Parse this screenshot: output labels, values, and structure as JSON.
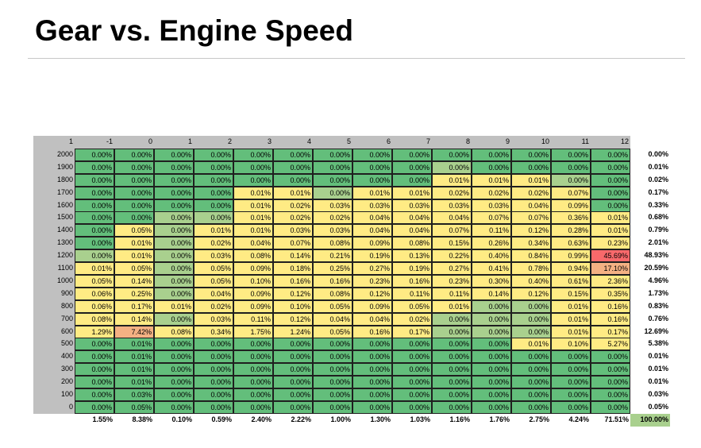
{
  "title": "Gear vs. Engine Speed",
  "corner_label": "1",
  "columns": [
    "-1",
    "0",
    "1",
    "2",
    "3",
    "4",
    "5",
    "6",
    "7",
    "8",
    "9",
    "10",
    "11",
    "12"
  ],
  "colors": {
    "green": "#63be7b",
    "light_green": "#a9d08e",
    "yellow": "#ffeb84",
    "orange": "#f4b183",
    "red": "#f8696b",
    "header_gray": "#c0c0c0"
  },
  "rows": [
    {
      "label": "2000",
      "cells": [
        "0.00%",
        "0.00%",
        "0.00%",
        "0.00%",
        "0.00%",
        "0.00%",
        "0.00%",
        "0.00%",
        "0.00%",
        "0.00%",
        "0.00%",
        "0.00%",
        "0.00%",
        "0.00%"
      ],
      "total": "0.00%"
    },
    {
      "label": "1900",
      "cells": [
        "0.00%",
        "0.00%",
        "0.00%",
        "0.00%",
        "0.00%",
        "0.00%",
        "0.00%",
        "0.00%",
        "0.00%",
        "0.00%",
        "0.00%",
        "0.00%",
        "0.00%",
        "0.00%"
      ],
      "total": "0.01%"
    },
    {
      "label": "1800",
      "cells": [
        "0.00%",
        "0.00%",
        "0.00%",
        "0.00%",
        "0.00%",
        "0.00%",
        "0.00%",
        "0.00%",
        "0.00%",
        "0.01%",
        "0.01%",
        "0.01%",
        "0.00%",
        "0.00%"
      ],
      "total": "0.02%"
    },
    {
      "label": "1700",
      "cells": [
        "0.00%",
        "0.00%",
        "0.00%",
        "0.00%",
        "0.01%",
        "0.01%",
        "0.00%",
        "0.01%",
        "0.01%",
        "0.02%",
        "0.02%",
        "0.02%",
        "0.07%",
        "0.00%"
      ],
      "total": "0.17%"
    },
    {
      "label": "1600",
      "cells": [
        "0.00%",
        "0.00%",
        "0.00%",
        "0.00%",
        "0.01%",
        "0.02%",
        "0.03%",
        "0.03%",
        "0.03%",
        "0.03%",
        "0.03%",
        "0.04%",
        "0.09%",
        "0.00%"
      ],
      "total": "0.33%"
    },
    {
      "label": "1500",
      "cells": [
        "0.00%",
        "0.00%",
        "0.00%",
        "0.00%",
        "0.01%",
        "0.02%",
        "0.02%",
        "0.04%",
        "0.04%",
        "0.04%",
        "0.07%",
        "0.07%",
        "0.36%",
        "0.01%"
      ],
      "total": "0.68%"
    },
    {
      "label": "1400",
      "cells": [
        "0.00%",
        "0.05%",
        "0.00%",
        "0.01%",
        "0.01%",
        "0.03%",
        "0.03%",
        "0.04%",
        "0.04%",
        "0.07%",
        "0.11%",
        "0.12%",
        "0.28%",
        "0.01%"
      ],
      "total": "0.79%"
    },
    {
      "label": "1300",
      "cells": [
        "0.00%",
        "0.01%",
        "0.00%",
        "0.02%",
        "0.04%",
        "0.07%",
        "0.08%",
        "0.09%",
        "0.08%",
        "0.15%",
        "0.26%",
        "0.34%",
        "0.63%",
        "0.23%"
      ],
      "total": "2.01%"
    },
    {
      "label": "1200",
      "cells": [
        "0.00%",
        "0.01%",
        "0.00%",
        "0.03%",
        "0.08%",
        "0.14%",
        "0.21%",
        "0.19%",
        "0.13%",
        "0.22%",
        "0.40%",
        "0.84%",
        "0.99%",
        "45.69%"
      ],
      "total": "48.93%"
    },
    {
      "label": "1100",
      "cells": [
        "0.01%",
        "0.05%",
        "0.00%",
        "0.05%",
        "0.09%",
        "0.18%",
        "0.25%",
        "0.27%",
        "0.19%",
        "0.27%",
        "0.41%",
        "0.78%",
        "0.94%",
        "17.10%"
      ],
      "total": "20.59%"
    },
    {
      "label": "1000",
      "cells": [
        "0.05%",
        "0.14%",
        "0.00%",
        "0.05%",
        "0.10%",
        "0.16%",
        "0.16%",
        "0.23%",
        "0.16%",
        "0.23%",
        "0.30%",
        "0.40%",
        "0.61%",
        "2.36%"
      ],
      "total": "4.96%"
    },
    {
      "label": "900",
      "cells": [
        "0.06%",
        "0.25%",
        "0.00%",
        "0.04%",
        "0.09%",
        "0.12%",
        "0.08%",
        "0.12%",
        "0.11%",
        "0.11%",
        "0.14%",
        "0.12%",
        "0.15%",
        "0.35%"
      ],
      "total": "1.73%"
    },
    {
      "label": "800",
      "cells": [
        "0.06%",
        "0.17%",
        "0.01%",
        "0.02%",
        "0.09%",
        "0.10%",
        "0.05%",
        "0.09%",
        "0.05%",
        "0.01%",
        "0.00%",
        "0.00%",
        "0.01%",
        "0.16%"
      ],
      "total": "0.83%"
    },
    {
      "label": "700",
      "cells": [
        "0.08%",
        "0.14%",
        "0.00%",
        "0.03%",
        "0.11%",
        "0.12%",
        "0.04%",
        "0.04%",
        "0.02%",
        "0.00%",
        "0.00%",
        "0.00%",
        "0.01%",
        "0.16%"
      ],
      "total": "0.76%"
    },
    {
      "label": "600",
      "cells": [
        "1.29%",
        "7.42%",
        "0.08%",
        "0.34%",
        "1.75%",
        "1.24%",
        "0.05%",
        "0.16%",
        "0.17%",
        "0.00%",
        "0.00%",
        "0.00%",
        "0.01%",
        "0.17%"
      ],
      "total": "12.69%"
    },
    {
      "label": "500",
      "cells": [
        "0.00%",
        "0.01%",
        "0.00%",
        "0.00%",
        "0.00%",
        "0.00%",
        "0.00%",
        "0.00%",
        "0.00%",
        "0.00%",
        "0.00%",
        "0.01%",
        "0.10%",
        "5.27%"
      ],
      "total": "5.38%"
    },
    {
      "label": "400",
      "cells": [
        "0.00%",
        "0.01%",
        "0.00%",
        "0.00%",
        "0.00%",
        "0.00%",
        "0.00%",
        "0.00%",
        "0.00%",
        "0.00%",
        "0.00%",
        "0.00%",
        "0.00%",
        "0.00%"
      ],
      "total": "0.01%"
    },
    {
      "label": "300",
      "cells": [
        "0.00%",
        "0.01%",
        "0.00%",
        "0.00%",
        "0.00%",
        "0.00%",
        "0.00%",
        "0.00%",
        "0.00%",
        "0.00%",
        "0.00%",
        "0.00%",
        "0.00%",
        "0.00%"
      ],
      "total": "0.01%"
    },
    {
      "label": "200",
      "cells": [
        "0.00%",
        "0.01%",
        "0.00%",
        "0.00%",
        "0.00%",
        "0.00%",
        "0.00%",
        "0.00%",
        "0.00%",
        "0.00%",
        "0.00%",
        "0.00%",
        "0.00%",
        "0.00%"
      ],
      "total": "0.01%"
    },
    {
      "label": "100",
      "cells": [
        "0.00%",
        "0.03%",
        "0.00%",
        "0.00%",
        "0.00%",
        "0.00%",
        "0.00%",
        "0.00%",
        "0.00%",
        "0.00%",
        "0.00%",
        "0.00%",
        "0.00%",
        "0.00%"
      ],
      "total": "0.03%"
    },
    {
      "label": "0",
      "cells": [
        "0.00%",
        "0.05%",
        "0.00%",
        "0.00%",
        "0.00%",
        "0.00%",
        "0.00%",
        "0.00%",
        "0.00%",
        "0.00%",
        "0.00%",
        "0.00%",
        "0.00%",
        "0.00%"
      ],
      "total": "0.05%"
    }
  ],
  "color_grid": [
    [
      "g",
      "g",
      "g",
      "g",
      "g",
      "g",
      "g",
      "g",
      "g",
      "g",
      "g",
      "g",
      "g",
      "g"
    ],
    [
      "g",
      "g",
      "g",
      "g",
      "g",
      "g",
      "g",
      "g",
      "g",
      "lg",
      "g",
      "g",
      "g",
      "g"
    ],
    [
      "g",
      "g",
      "g",
      "g",
      "g",
      "g",
      "g",
      "g",
      "g",
      "y",
      "y",
      "y",
      "lg",
      "g"
    ],
    [
      "g",
      "g",
      "g",
      "g",
      "y",
      "y",
      "lg",
      "y",
      "y",
      "y",
      "y",
      "y",
      "y",
      "g"
    ],
    [
      "g",
      "g",
      "g",
      "g",
      "y",
      "y",
      "y",
      "y",
      "y",
      "y",
      "y",
      "y",
      "y",
      "g"
    ],
    [
      "g",
      "g",
      "lg",
      "lg",
      "y",
      "y",
      "y",
      "y",
      "y",
      "y",
      "y",
      "y",
      "y",
      "y"
    ],
    [
      "g",
      "y",
      "lg",
      "y",
      "y",
      "y",
      "y",
      "y",
      "y",
      "y",
      "y",
      "y",
      "y",
      "y"
    ],
    [
      "g",
      "y",
      "lg",
      "y",
      "y",
      "y",
      "y",
      "y",
      "y",
      "y",
      "y",
      "y",
      "y",
      "y"
    ],
    [
      "lg",
      "y",
      "lg",
      "y",
      "y",
      "y",
      "y",
      "y",
      "y",
      "y",
      "y",
      "y",
      "y",
      "r"
    ],
    [
      "y",
      "y",
      "lg",
      "y",
      "y",
      "y",
      "y",
      "y",
      "y",
      "y",
      "y",
      "y",
      "y",
      "o"
    ],
    [
      "y",
      "y",
      "lg",
      "y",
      "y",
      "y",
      "y",
      "y",
      "y",
      "y",
      "y",
      "y",
      "y",
      "y"
    ],
    [
      "y",
      "y",
      "lg",
      "y",
      "y",
      "y",
      "y",
      "y",
      "y",
      "y",
      "y",
      "y",
      "y",
      "y"
    ],
    [
      "y",
      "y",
      "y",
      "y",
      "y",
      "y",
      "y",
      "y",
      "y",
      "y",
      "lg",
      "lg",
      "y",
      "y"
    ],
    [
      "y",
      "y",
      "lg",
      "y",
      "y",
      "y",
      "y",
      "y",
      "y",
      "lg",
      "lg",
      "lg",
      "y",
      "y"
    ],
    [
      "y",
      "o",
      "y",
      "y",
      "y",
      "y",
      "y",
      "y",
      "y",
      "lg",
      "lg",
      "lg",
      "y",
      "y"
    ],
    [
      "g",
      "g",
      "g",
      "g",
      "g",
      "g",
      "g",
      "g",
      "g",
      "g",
      "g",
      "y",
      "y",
      "y"
    ],
    [
      "g",
      "g",
      "g",
      "g",
      "g",
      "g",
      "g",
      "g",
      "g",
      "g",
      "g",
      "g",
      "g",
      "g"
    ],
    [
      "g",
      "g",
      "g",
      "g",
      "g",
      "g",
      "g",
      "g",
      "g",
      "g",
      "g",
      "g",
      "g",
      "g"
    ],
    [
      "g",
      "g",
      "g",
      "g",
      "g",
      "g",
      "g",
      "g",
      "g",
      "g",
      "g",
      "g",
      "g",
      "g"
    ],
    [
      "g",
      "g",
      "g",
      "g",
      "g",
      "g",
      "g",
      "g",
      "g",
      "g",
      "g",
      "g",
      "g",
      "g"
    ],
    [
      "g",
      "g",
      "g",
      "g",
      "g",
      "g",
      "g",
      "g",
      "g",
      "g",
      "g",
      "g",
      "g",
      "g"
    ]
  ],
  "column_totals": [
    "1.55%",
    "8.38%",
    "0.10%",
    "0.59%",
    "2.40%",
    "2.22%",
    "1.00%",
    "1.30%",
    "1.03%",
    "1.16%",
    "1.76%",
    "2.75%",
    "4.24%",
    "71.51%"
  ],
  "grand_total": "100.00%"
}
